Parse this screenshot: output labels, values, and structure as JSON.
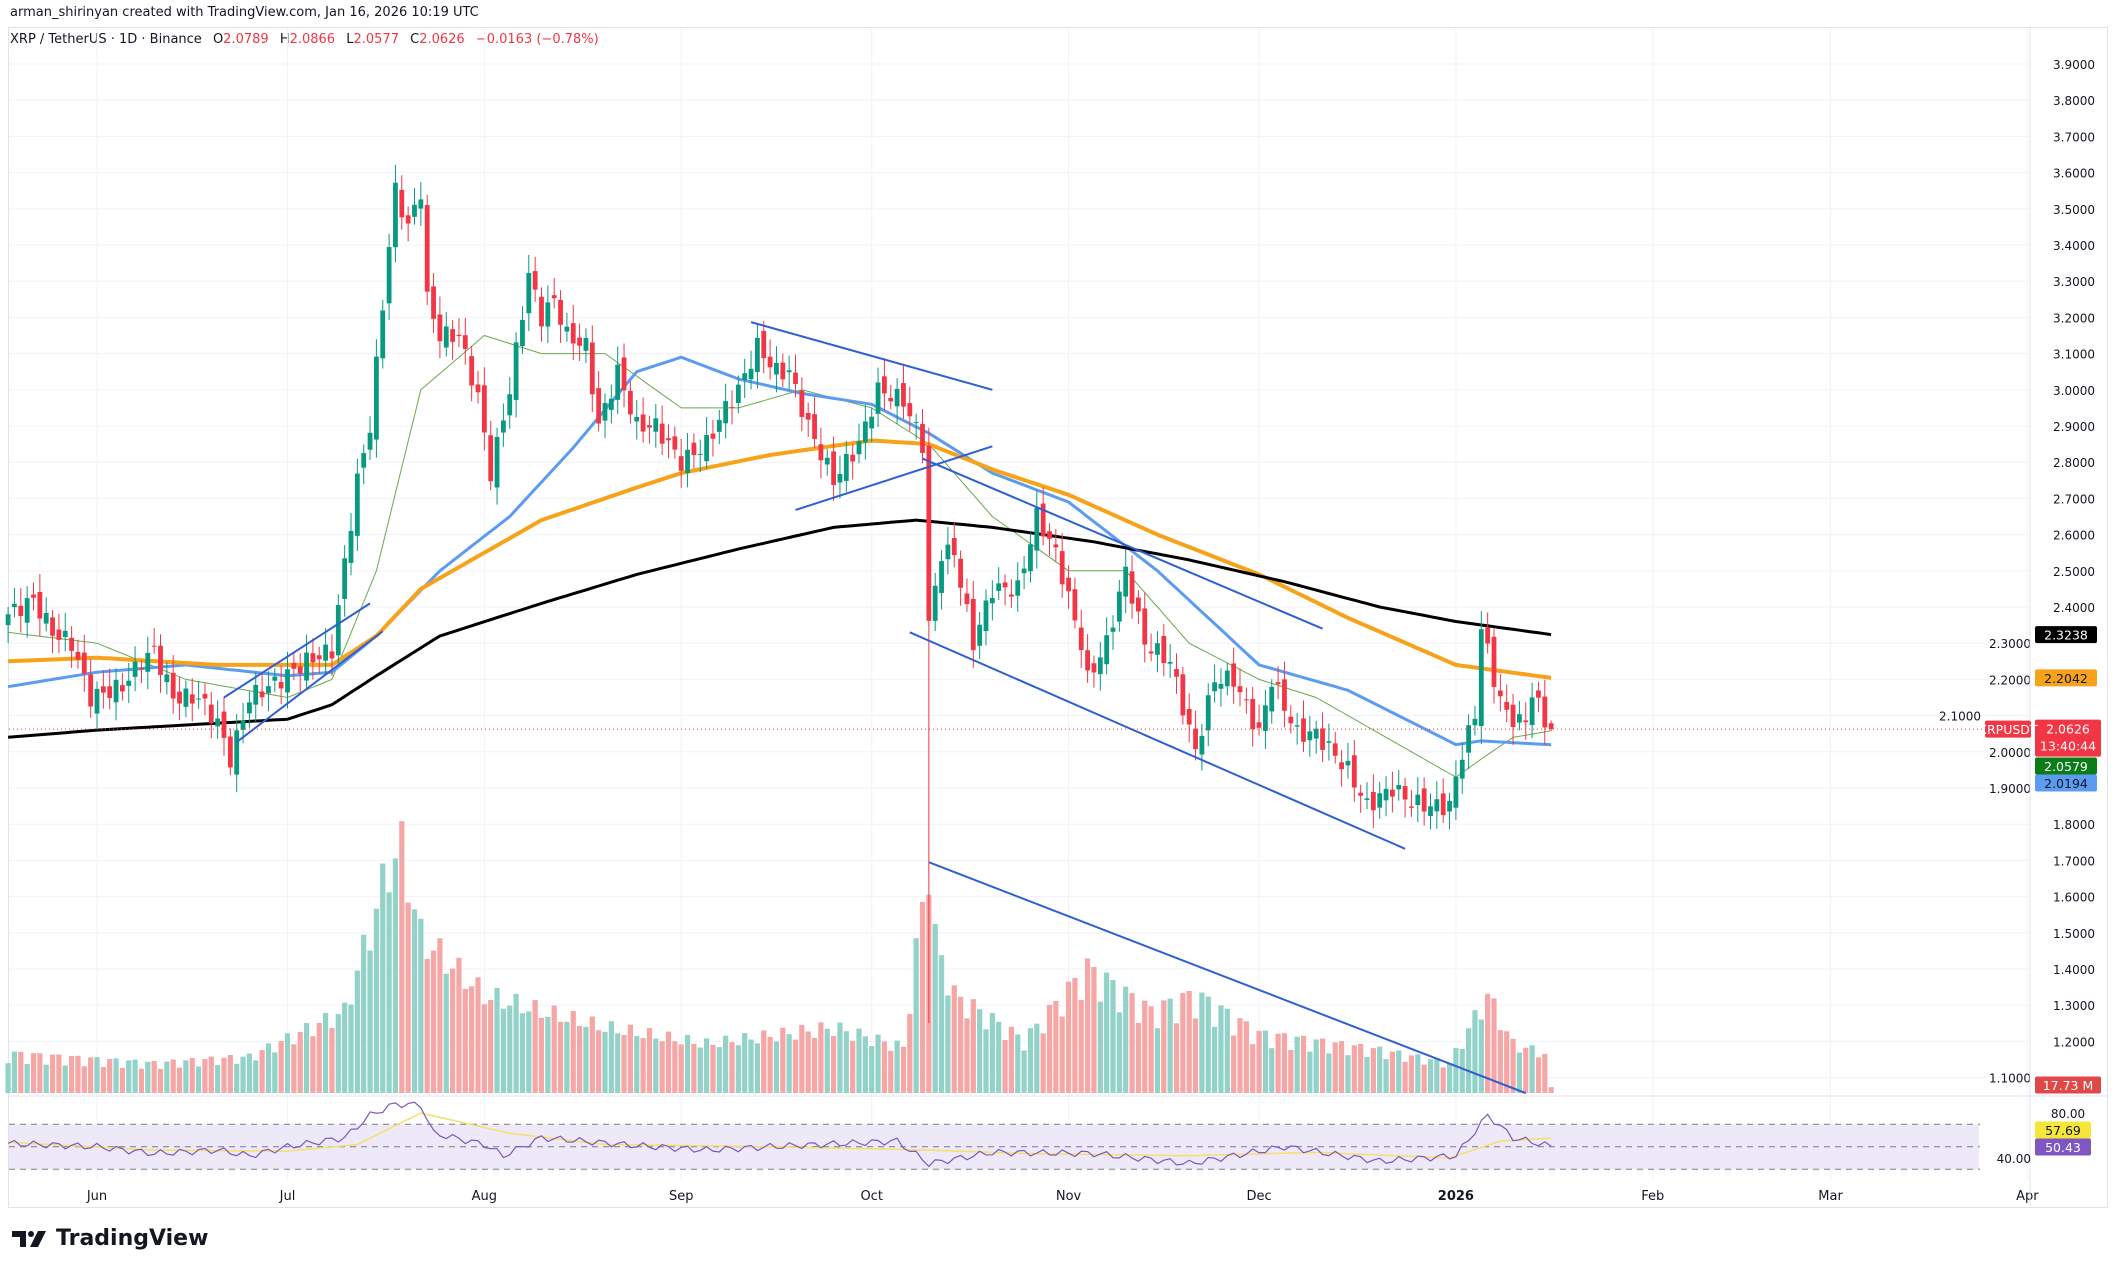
{
  "header": {
    "credit": "arman_shirinyan created with TradingView.com, Jan 16, 2026 10:19 UTC",
    "symbol": "XRP / TetherUS · 1D · Binance",
    "open_label": "O",
    "open": "2.0789",
    "high_label": "H",
    "high": "2.0866",
    "low_label": "L",
    "low": "2.0577",
    "close_label": "C",
    "close": "2.0626",
    "change": "−0.0163 (−0.78%)"
  },
  "logo": {
    "text": "TradingView",
    "icon": "tradingview-logo-icon"
  },
  "colors": {
    "up": "#089981",
    "down": "#f23645",
    "vol_up": "#92d2c8",
    "vol_down": "#f5a6a5",
    "ma_fast": "#6aa84f",
    "ma_50": "#5b9cf0",
    "ma_100": "#f7a21b",
    "ma_200": "#000000",
    "trendline": "#2f5fd0",
    "rsi": "#7e57c2",
    "rsi_ma": "#f5e06a",
    "rsi_band": "#ede9f8"
  },
  "chart_data": {
    "type": "candlestick",
    "symbol_tag": "XRPUSDT",
    "countdown": "13:40:44",
    "last_price": "2.0626",
    "xticks": [
      "Jun",
      "Jul",
      "Aug",
      "Sep",
      "Oct",
      "Nov",
      "Dec",
      "2026",
      "Feb",
      "Mar",
      "Apr"
    ],
    "xtick_dates": [
      "2025-06-01",
      "2025-07-01",
      "2025-08-01",
      "2025-09-01",
      "2025-10-01",
      "2025-11-01",
      "2025-12-01",
      "2026-01-01",
      "2026-02-01",
      "2026-03-01",
      "2026-04-01"
    ],
    "yticks": [
      "1.1000",
      "1.2000",
      "1.3000",
      "1.4000",
      "1.5000",
      "1.6000",
      "1.7000",
      "1.8000",
      "1.9000",
      "2.0000",
      "2.1000",
      "2.2000",
      "2.3000",
      "2.4000",
      "2.5000",
      "2.6000",
      "2.7000",
      "2.8000",
      "2.9000",
      "3.0000",
      "3.1000",
      "3.2000",
      "3.3000",
      "3.4000",
      "3.5000",
      "3.6000",
      "3.7000",
      "3.8000",
      "3.9000"
    ],
    "ylim": [
      1.1,
      3.9
    ],
    "grid": true,
    "close_knots": [
      [
        "2025-05-18",
        2.38
      ],
      [
        "2025-05-22",
        2.42
      ],
      [
        "2025-05-25",
        2.33
      ],
      [
        "2025-05-28",
        2.3
      ],
      [
        "2025-05-31",
        2.15
      ],
      [
        "2025-06-05",
        2.18
      ],
      [
        "2025-06-08",
        2.25
      ],
      [
        "2025-06-10",
        2.28
      ],
      [
        "2025-06-13",
        2.15
      ],
      [
        "2025-06-17",
        2.15
      ],
      [
        "2025-06-20",
        2.08
      ],
      [
        "2025-06-22",
        1.98
      ],
      [
        "2025-06-25",
        2.15
      ],
      [
        "2025-06-30",
        2.2
      ],
      [
        "2025-07-04",
        2.25
      ],
      [
        "2025-07-08",
        2.28
      ],
      [
        "2025-07-10",
        2.52
      ],
      [
        "2025-07-12",
        2.75
      ],
      [
        "2025-07-14",
        2.9
      ],
      [
        "2025-07-17",
        3.4
      ],
      [
        "2025-07-18",
        3.55
      ],
      [
        "2025-07-20",
        3.45
      ],
      [
        "2025-07-22",
        3.55
      ],
      [
        "2025-07-23",
        3.25
      ],
      [
        "2025-07-25",
        3.15
      ],
      [
        "2025-07-28",
        3.15
      ],
      [
        "2025-07-31",
        2.98
      ],
      [
        "2025-08-02",
        2.77
      ],
      [
        "2025-08-05",
        3.0
      ],
      [
        "2025-08-08",
        3.32
      ],
      [
        "2025-08-10",
        3.2
      ],
      [
        "2025-08-12",
        3.25
      ],
      [
        "2025-08-14",
        3.15
      ],
      [
        "2025-08-17",
        3.12
      ],
      [
        "2025-08-19",
        2.9
      ],
      [
        "2025-08-22",
        3.05
      ],
      [
        "2025-08-25",
        2.9
      ],
      [
        "2025-08-28",
        2.9
      ],
      [
        "2025-09-01",
        2.8
      ],
      [
        "2025-09-05",
        2.85
      ],
      [
        "2025-09-08",
        2.95
      ],
      [
        "2025-09-10",
        3.0
      ],
      [
        "2025-09-13",
        3.12
      ],
      [
        "2025-09-16",
        3.05
      ],
      [
        "2025-09-18",
        3.05
      ],
      [
        "2025-09-21",
        2.9
      ],
      [
        "2025-09-25",
        2.75
      ],
      [
        "2025-09-29",
        2.85
      ],
      [
        "2025-10-02",
        3.0
      ],
      [
        "2025-10-06",
        2.97
      ],
      [
        "2025-10-09",
        2.85
      ],
      [
        "2025-10-10",
        2.35
      ],
      [
        "2025-10-12",
        2.55
      ],
      [
        "2025-10-14",
        2.55
      ],
      [
        "2025-10-17",
        2.3
      ],
      [
        "2025-10-20",
        2.45
      ],
      [
        "2025-10-24",
        2.45
      ],
      [
        "2025-10-27",
        2.65
      ],
      [
        "2025-10-30",
        2.55
      ],
      [
        "2025-11-03",
        2.3
      ],
      [
        "2025-11-04",
        2.2
      ],
      [
        "2025-11-07",
        2.3
      ],
      [
        "2025-11-10",
        2.5
      ],
      [
        "2025-11-13",
        2.3
      ],
      [
        "2025-11-17",
        2.25
      ],
      [
        "2025-11-21",
        2.0
      ],
      [
        "2025-11-24",
        2.2
      ],
      [
        "2025-11-27",
        2.2
      ],
      [
        "2025-12-01",
        2.05
      ],
      [
        "2025-12-03",
        2.2
      ],
      [
        "2025-12-07",
        2.05
      ],
      [
        "2025-12-10",
        2.05
      ],
      [
        "2025-12-15",
        1.95
      ],
      [
        "2025-12-18",
        1.85
      ],
      [
        "2025-12-22",
        1.9
      ],
      [
        "2025-12-25",
        1.86
      ],
      [
        "2025-12-28",
        1.85
      ],
      [
        "2025-12-31",
        1.85
      ],
      [
        "2026-01-02",
        2.0
      ],
      [
        "2026-01-04",
        2.1
      ],
      [
        "2026-01-05",
        2.35
      ],
      [
        "2026-01-07",
        2.2
      ],
      [
        "2026-01-09",
        2.1
      ],
      [
        "2026-01-12",
        2.08
      ],
      [
        "2026-01-13",
        2.17
      ],
      [
        "2026-01-15",
        2.08
      ],
      [
        "2026-01-16",
        2.0626
      ]
    ],
    "special_lows": [
      [
        "2025-10-10",
        1.25
      ]
    ],
    "last_candle": {
      "date": "2026-01-16",
      "open": 2.0789,
      "high": 2.0866,
      "low": 2.0577,
      "close": 2.0626
    },
    "moving_averages": [
      {
        "label": "2.0579",
        "color_key": "ma_fast",
        "knots": [
          [
            "2025-05-18",
            2.33
          ],
          [
            "2025-06-01",
            2.3
          ],
          [
            "2025-06-15",
            2.2
          ],
          [
            "2025-07-01",
            2.15
          ],
          [
            "2025-07-08",
            2.2
          ],
          [
            "2025-07-15",
            2.5
          ],
          [
            "2025-07-22",
            3.0
          ],
          [
            "2025-08-01",
            3.15
          ],
          [
            "2025-08-10",
            3.1
          ],
          [
            "2025-08-20",
            3.1
          ],
          [
            "2025-09-01",
            2.95
          ],
          [
            "2025-09-10",
            2.95
          ],
          [
            "2025-09-20",
            3.0
          ],
          [
            "2025-10-01",
            2.95
          ],
          [
            "2025-10-10",
            2.85
          ],
          [
            "2025-10-20",
            2.65
          ],
          [
            "2025-11-01",
            2.5
          ],
          [
            "2025-11-10",
            2.5
          ],
          [
            "2025-11-20",
            2.3
          ],
          [
            "2025-12-01",
            2.2
          ],
          [
            "2025-12-10",
            2.15
          ],
          [
            "2025-12-20",
            2.05
          ],
          [
            "2026-01-01",
            1.93
          ],
          [
            "2026-01-05",
            1.98
          ],
          [
            "2026-01-10",
            2.04
          ],
          [
            "2026-01-16",
            2.0579
          ]
        ]
      },
      {
        "label": "2.0194",
        "color_key": "ma_50",
        "knots": [
          [
            "2025-05-18",
            2.18
          ],
          [
            "2025-06-01",
            2.22
          ],
          [
            "2025-06-15",
            2.24
          ],
          [
            "2025-07-01",
            2.21
          ],
          [
            "2025-07-08",
            2.22
          ],
          [
            "2025-07-15",
            2.32
          ],
          [
            "2025-07-25",
            2.5
          ],
          [
            "2025-08-05",
            2.65
          ],
          [
            "2025-08-15",
            2.84
          ],
          [
            "2025-08-25",
            3.05
          ],
          [
            "2025-09-01",
            3.09
          ],
          [
            "2025-09-10",
            3.03
          ],
          [
            "2025-09-20",
            2.99
          ],
          [
            "2025-10-01",
            2.96
          ],
          [
            "2025-10-10",
            2.88
          ],
          [
            "2025-10-20",
            2.77
          ],
          [
            "2025-11-01",
            2.69
          ],
          [
            "2025-11-15",
            2.5
          ],
          [
            "2025-12-01",
            2.24
          ],
          [
            "2025-12-15",
            2.17
          ],
          [
            "2026-01-01",
            2.02
          ],
          [
            "2026-01-05",
            2.03
          ],
          [
            "2026-01-16",
            2.0194
          ]
        ]
      },
      {
        "label": "2.2042",
        "color_key": "ma_100",
        "knots": [
          [
            "2025-05-18",
            2.25
          ],
          [
            "2025-06-01",
            2.26
          ],
          [
            "2025-06-20",
            2.24
          ],
          [
            "2025-07-08",
            2.24
          ],
          [
            "2025-07-15",
            2.32
          ],
          [
            "2025-07-22",
            2.45
          ],
          [
            "2025-08-01",
            2.55
          ],
          [
            "2025-08-10",
            2.64
          ],
          [
            "2025-08-25",
            2.73
          ],
          [
            "2025-09-01",
            2.77
          ],
          [
            "2025-09-15",
            2.82
          ],
          [
            "2025-10-01",
            2.86
          ],
          [
            "2025-10-10",
            2.85
          ],
          [
            "2025-10-20",
            2.78
          ],
          [
            "2025-11-01",
            2.71
          ],
          [
            "2025-11-15",
            2.6
          ],
          [
            "2025-12-01",
            2.49
          ],
          [
            "2025-12-15",
            2.37
          ],
          [
            "2026-01-01",
            2.24
          ],
          [
            "2026-01-16",
            2.2042
          ]
        ]
      },
      {
        "label": "2.3238",
        "color_key": "ma_200",
        "knots": [
          [
            "2025-05-18",
            2.04
          ],
          [
            "2025-06-01",
            2.06
          ],
          [
            "2025-07-01",
            2.09
          ],
          [
            "2025-07-08",
            2.13
          ],
          [
            "2025-07-15",
            2.21
          ],
          [
            "2025-07-25",
            2.32
          ],
          [
            "2025-08-10",
            2.41
          ],
          [
            "2025-08-25",
            2.49
          ],
          [
            "2025-09-10",
            2.56
          ],
          [
            "2025-09-25",
            2.62
          ],
          [
            "2025-10-08",
            2.64
          ],
          [
            "2025-10-20",
            2.62
          ],
          [
            "2025-11-05",
            2.58
          ],
          [
            "2025-11-20",
            2.53
          ],
          [
            "2025-12-05",
            2.47
          ],
          [
            "2025-12-20",
            2.4
          ],
          [
            "2026-01-01",
            2.36
          ],
          [
            "2026-01-16",
            2.3238
          ]
        ]
      }
    ],
    "trendlines": [
      [
        [
          "2025-06-21",
          2.15
        ],
        [
          "2025-07-14",
          2.41
        ]
      ],
      [
        [
          "2025-06-23",
          2.027
        ],
        [
          "2025-07-16",
          2.333
        ]
      ],
      [
        [
          "2025-09-12",
          3.187
        ],
        [
          "2025-10-20",
          3.0
        ]
      ],
      [
        [
          "2025-09-19",
          2.668
        ],
        [
          "2025-10-20",
          2.844
        ]
      ],
      [
        [
          "2025-10-09",
          2.81
        ],
        [
          "2025-12-11",
          2.34
        ]
      ],
      [
        [
          "2025-10-07",
          2.33
        ],
        [
          "2025-12-24",
          1.732
        ]
      ],
      [
        [
          "2025-10-10",
          1.695
        ],
        [
          "2026-01-12",
          1.057
        ]
      ]
    ],
    "volume": {
      "unit": "M",
      "last_label": "17.73 M",
      "knots": [
        [
          "2025-05-18",
          120
        ],
        [
          "2025-06-10",
          90
        ],
        [
          "2025-06-25",
          110
        ],
        [
          "2025-07-10",
          250
        ],
        [
          "2025-07-14",
          500
        ],
        [
          "2025-07-17",
          700
        ],
        [
          "2025-07-19",
          750
        ],
        [
          "2025-07-22",
          480
        ],
        [
          "2025-08-01",
          300
        ],
        [
          "2025-08-10",
          250
        ],
        [
          "2025-08-20",
          200
        ],
        [
          "2025-09-05",
          150
        ],
        [
          "2025-09-25",
          200
        ],
        [
          "2025-10-06",
          140
        ],
        [
          "2025-10-10",
          720
        ],
        [
          "2025-10-11",
          470
        ],
        [
          "2025-10-14",
          300
        ],
        [
          "2025-10-25",
          160
        ],
        [
          "2025-11-04",
          380
        ],
        [
          "2025-11-14",
          250
        ],
        [
          "2025-11-21",
          300
        ],
        [
          "2025-12-01",
          180
        ],
        [
          "2025-12-20",
          130
        ],
        [
          "2025-12-31",
          90
        ],
        [
          "2026-01-06",
          300
        ],
        [
          "2026-01-10",
          150
        ],
        [
          "2026-01-15",
          120
        ],
        [
          "2026-01-16",
          17.73
        ]
      ]
    },
    "rsi": {
      "yticks": [
        "80.00",
        "40.00"
      ],
      "bands": [
        70,
        50,
        30
      ],
      "value_label": "50.43",
      "ma_label": "57.69",
      "knots": [
        [
          "2025-05-18",
          53
        ],
        [
          "2025-06-01",
          50
        ],
        [
          "2025-06-10",
          44
        ],
        [
          "2025-06-20",
          47
        ],
        [
          "2025-06-25",
          42
        ],
        [
          "2025-07-01",
          50
        ],
        [
          "2025-07-10",
          58
        ],
        [
          "2025-07-14",
          78
        ],
        [
          "2025-07-18",
          88
        ],
        [
          "2025-07-22",
          87
        ],
        [
          "2025-07-24",
          62
        ],
        [
          "2025-08-01",
          52
        ],
        [
          "2025-08-04",
          42
        ],
        [
          "2025-08-10",
          58
        ],
        [
          "2025-08-25",
          51
        ],
        [
          "2025-09-05",
          47
        ],
        [
          "2025-09-15",
          50
        ],
        [
          "2025-10-05",
          55
        ],
        [
          "2025-10-10",
          35
        ],
        [
          "2025-10-20",
          45
        ],
        [
          "2025-11-05",
          44
        ],
        [
          "2025-11-20",
          35
        ],
        [
          "2025-12-05",
          50
        ],
        [
          "2025-12-20",
          37
        ],
        [
          "2026-01-01",
          42
        ],
        [
          "2026-01-06",
          78
        ],
        [
          "2026-01-10",
          58
        ],
        [
          "2026-01-16",
          50.43
        ]
      ],
      "ma_knots": [
        [
          "2025-05-18",
          54
        ],
        [
          "2025-06-10",
          47
        ],
        [
          "2025-07-01",
          46
        ],
        [
          "2025-07-12",
          52
        ],
        [
          "2025-07-22",
          80
        ],
        [
          "2025-08-05",
          62
        ],
        [
          "2025-08-20",
          52
        ],
        [
          "2025-09-15",
          50
        ],
        [
          "2025-10-10",
          47
        ],
        [
          "2025-10-25",
          44
        ],
        [
          "2025-11-20",
          42
        ],
        [
          "2025-12-10",
          45
        ],
        [
          "2025-12-31",
          40
        ],
        [
          "2026-01-08",
          55
        ],
        [
          "2026-01-16",
          57.69
        ]
      ]
    }
  }
}
